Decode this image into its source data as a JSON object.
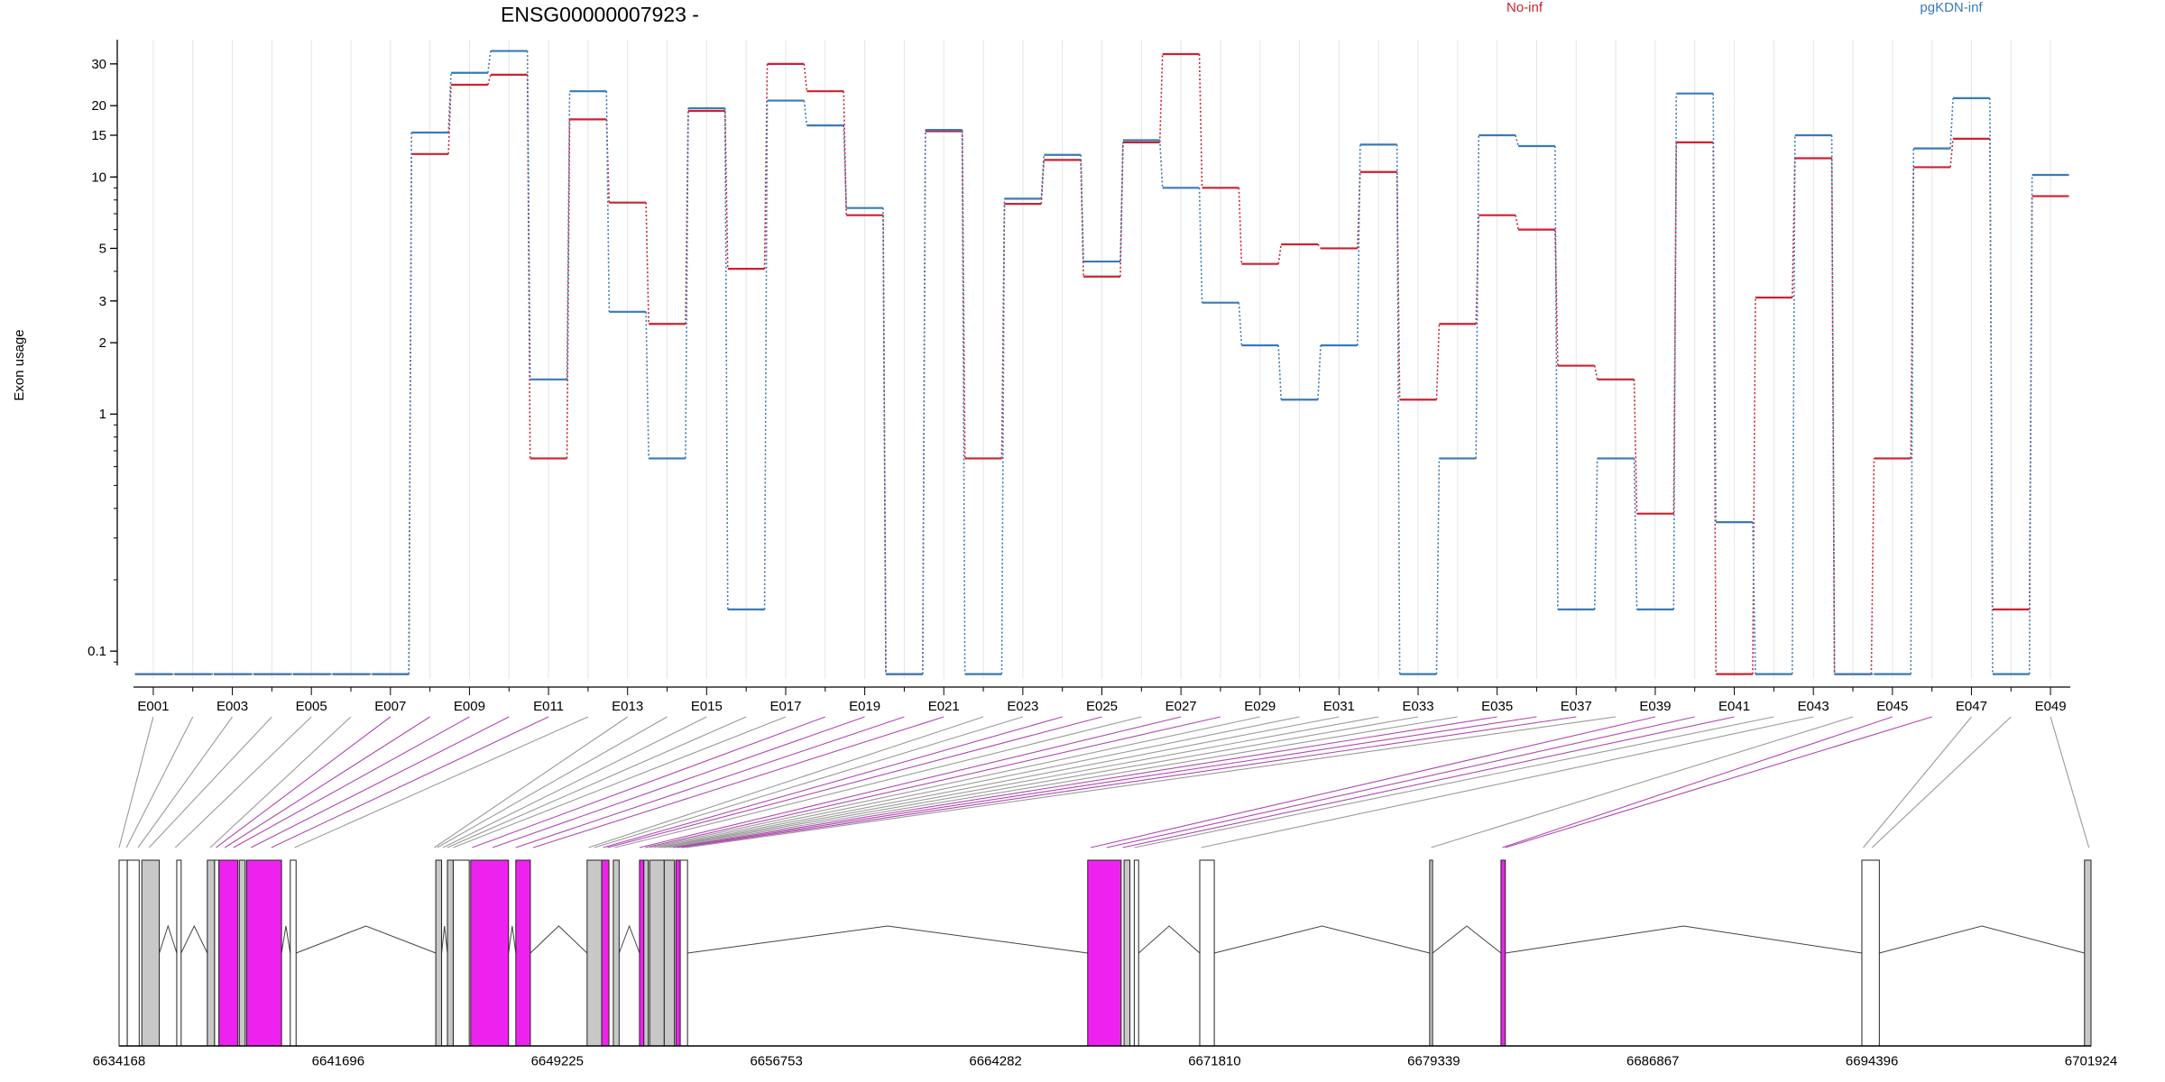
{
  "chart_data": {
    "type": "line",
    "title": "ENSG00000007923 -",
    "ylabel": "Exon usage",
    "xlabel": "",
    "y_scale": "log",
    "ylim": [
      0.075,
      40
    ],
    "yticks": [
      0.1,
      1,
      2,
      3,
      5,
      10,
      15,
      20,
      30
    ],
    "ytick_labels": [
      "0.1",
      "1",
      "2",
      "3",
      "5",
      "10",
      "15",
      "20",
      "30"
    ],
    "legend_placement": "top",
    "grid": "vertical",
    "categories": [
      "E001",
      "E002",
      "E003",
      "E004",
      "E005",
      "E006",
      "E007",
      "E008",
      "E009",
      "E010",
      "E011",
      "E012",
      "E013",
      "E014",
      "E015",
      "E016",
      "E017",
      "E018",
      "E019",
      "E020",
      "E021",
      "E022",
      "E023",
      "E024",
      "E025",
      "E026",
      "E027",
      "E028",
      "E029",
      "E030",
      "E031",
      "E032",
      "E033",
      "E034",
      "E035",
      "E036",
      "E037",
      "E038",
      "E039",
      "E040",
      "E041",
      "E042",
      "E043",
      "E044",
      "E045",
      "E046",
      "E047",
      "E048",
      "E049"
    ],
    "xtick_labels": [
      "E001",
      "E003",
      "E005",
      "E007",
      "E009",
      "E011",
      "E013",
      "E015",
      "E017",
      "E019",
      "E021",
      "E023",
      "E025",
      "E027",
      "E029",
      "E031",
      "E033",
      "E035",
      "E037",
      "E039",
      "E041",
      "E043",
      "E045",
      "E047",
      "E049"
    ],
    "series": [
      {
        "name": "No-inf",
        "color": "#cc2230",
        "style": "dotted-connector",
        "values": [
          0.08,
          0.08,
          0.08,
          0.08,
          0.08,
          0.08,
          0.08,
          12.5,
          24.5,
          27.0,
          0.65,
          17.5,
          7.8,
          2.4,
          19.0,
          4.1,
          30.0,
          23.0,
          6.9,
          0.08,
          15.6,
          0.65,
          7.7,
          11.8,
          3.8,
          14.0,
          33.0,
          9.0,
          4.3,
          5.2,
          5.0,
          10.5,
          1.15,
          2.4,
          6.9,
          6.0,
          1.6,
          1.4,
          0.38,
          14.0,
          0.08,
          3.1,
          12.0,
          0.08,
          0.65,
          11.0,
          14.5,
          0.15,
          8.3
        ]
      },
      {
        "name": "pgKDN-inf",
        "color": "#3a7ab8",
        "style": "dotted-connector",
        "values": [
          0.08,
          0.08,
          0.08,
          0.08,
          0.08,
          0.08,
          0.08,
          15.4,
          27.5,
          34.0,
          1.4,
          23.0,
          2.7,
          0.65,
          19.5,
          0.15,
          21.0,
          16.5,
          7.4,
          0.08,
          15.8,
          0.08,
          8.1,
          12.4,
          4.4,
          14.3,
          9.0,
          2.95,
          1.95,
          1.15,
          1.95,
          13.7,
          0.08,
          0.65,
          15.0,
          13.5,
          0.15,
          0.65,
          0.15,
          22.5,
          0.35,
          0.08,
          15.0,
          0.08,
          0.08,
          13.2,
          21.5,
          0.08,
          10.2
        ]
      }
    ],
    "gene_track": {
      "axis_labels": [
        "6634168",
        "6641696",
        "6649225",
        "6656753",
        "6664282",
        "6671810",
        "6679339",
        "6686867",
        "6694396",
        "6701924"
      ],
      "range": [
        6634168,
        6701924
      ],
      "highlight_color": "#ee22ee",
      "neutral_color": "#c8c8c8",
      "exon_blocks": [
        {
          "start": 6634168,
          "end": 6634450,
          "fill": "white"
        },
        {
          "start": 6634450,
          "end": 6634860,
          "fill": "white"
        },
        {
          "start": 6634950,
          "end": 6635550,
          "fill": "gray"
        },
        {
          "start": 6636150,
          "end": 6636300,
          "fill": "white"
        },
        {
          "start": 6637200,
          "end": 6637450,
          "fill": "gray"
        },
        {
          "start": 6637450,
          "end": 6637600,
          "fill": "white"
        },
        {
          "start": 6637600,
          "end": 6638250,
          "fill": "magenta"
        },
        {
          "start": 6638300,
          "end": 6638500,
          "fill": "gray"
        },
        {
          "start": 6638550,
          "end": 6639750,
          "fill": "magenta"
        },
        {
          "start": 6640050,
          "end": 6640250,
          "fill": "white"
        },
        {
          "start": 6645050,
          "end": 6645250,
          "fill": "gray"
        },
        {
          "start": 6645450,
          "end": 6645650,
          "fill": "gray"
        },
        {
          "start": 6645650,
          "end": 6646200,
          "fill": "white"
        },
        {
          "start": 6646250,
          "end": 6647550,
          "fill": "magenta"
        },
        {
          "start": 6647800,
          "end": 6648300,
          "fill": "magenta"
        },
        {
          "start": 6650250,
          "end": 6650750,
          "fill": "gray"
        },
        {
          "start": 6650750,
          "end": 6651000,
          "fill": "magenta"
        },
        {
          "start": 6651150,
          "end": 6651350,
          "fill": "gray"
        },
        {
          "start": 6652050,
          "end": 6652200,
          "fill": "magenta"
        },
        {
          "start": 6652200,
          "end": 6652350,
          "fill": "gray"
        },
        {
          "start": 6652400,
          "end": 6652900,
          "fill": "gray"
        },
        {
          "start": 6652900,
          "end": 6653250,
          "fill": "gray"
        },
        {
          "start": 6653300,
          "end": 6653450,
          "fill": "magenta"
        },
        {
          "start": 6653450,
          "end": 6653700,
          "fill": "white"
        },
        {
          "start": 6667450,
          "end": 6668600,
          "fill": "magenta"
        },
        {
          "start": 6668700,
          "end": 6668900,
          "fill": "gray"
        },
        {
          "start": 6669050,
          "end": 6669200,
          "fill": "white"
        },
        {
          "start": 6671300,
          "end": 6671800,
          "fill": "white"
        },
        {
          "start": 6679200,
          "end": 6679300,
          "fill": "gray"
        },
        {
          "start": 6681650,
          "end": 6681800,
          "fill": "magenta"
        },
        {
          "start": 6694050,
          "end": 6694650,
          "fill": "white"
        },
        {
          "start": 6701700,
          "end": 6701924,
          "fill": "gray"
        }
      ],
      "connector_targets": [
        6634168,
        6634420,
        6634820,
        6635200,
        6636100,
        6637300,
        6637500,
        6637800,
        6638100,
        6638700,
        6639400,
        6640200,
        6645000,
        6645100,
        6645300,
        6645450,
        6645650,
        6646300,
        6647000,
        6647800,
        6648400,
        6650300,
        6650500,
        6650800,
        6650950,
        6651200,
        6652050,
        6652250,
        6652400,
        6652550,
        6652700,
        6652800,
        6652900,
        6653050,
        6653200,
        6653350,
        6653500,
        6653650,
        6667550,
        6668100,
        6668650,
        6669050,
        6671350,
        6679250,
        6681700,
        6681800,
        6694100,
        6694400,
        6701850
      ]
    }
  }
}
